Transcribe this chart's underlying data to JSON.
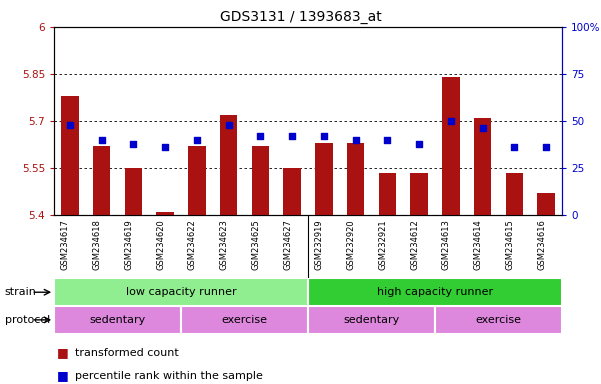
{
  "title": "GDS3131 / 1393683_at",
  "samples": [
    "GSM234617",
    "GSM234618",
    "GSM234619",
    "GSM234620",
    "GSM234622",
    "GSM234623",
    "GSM234625",
    "GSM234627",
    "GSM232919",
    "GSM232920",
    "GSM232921",
    "GSM234612",
    "GSM234613",
    "GSM234614",
    "GSM234615",
    "GSM234616"
  ],
  "bar_values": [
    5.78,
    5.62,
    5.55,
    5.41,
    5.62,
    5.72,
    5.62,
    5.55,
    5.63,
    5.63,
    5.535,
    5.535,
    5.84,
    5.71,
    5.535,
    5.47
  ],
  "dot_values": [
    48,
    40,
    38,
    36,
    40,
    48,
    42,
    42,
    42,
    40,
    40,
    38,
    50,
    46,
    36,
    36
  ],
  "ylim_left": [
    5.4,
    6.0
  ],
  "ylim_right": [
    0,
    100
  ],
  "yticks_left": [
    5.4,
    5.55,
    5.7,
    5.85,
    6.0
  ],
  "yticks_right": [
    0,
    25,
    50,
    75,
    100
  ],
  "ytick_labels_left": [
    "5.4",
    "5.55",
    "5.7",
    "5.85",
    "6"
  ],
  "ytick_labels_right": [
    "0",
    "25",
    "50",
    "75",
    "100%"
  ],
  "grid_lines": [
    5.55,
    5.7,
    5.85
  ],
  "bar_color": "#aa1111",
  "dot_color": "#0000cc",
  "bar_bottom": 5.4,
  "strain_labels": [
    "low capacity runner",
    "high capacity runner"
  ],
  "strain_color_low": "#90ee90",
  "strain_color_high": "#32cd32",
  "protocol_labels": [
    "sedentary",
    "exercise",
    "sedentary",
    "exercise"
  ],
  "protocol_ranges": [
    [
      0,
      4
    ],
    [
      4,
      8
    ],
    [
      8,
      12
    ],
    [
      12,
      16
    ]
  ],
  "protocol_color": "#dd88dd",
  "legend_items": [
    "transformed count",
    "percentile rank within the sample"
  ],
  "legend_colors": [
    "#aa1111",
    "#0000cc"
  ],
  "plot_bg": "#ffffff",
  "xtick_bg": "#d8d8d8"
}
